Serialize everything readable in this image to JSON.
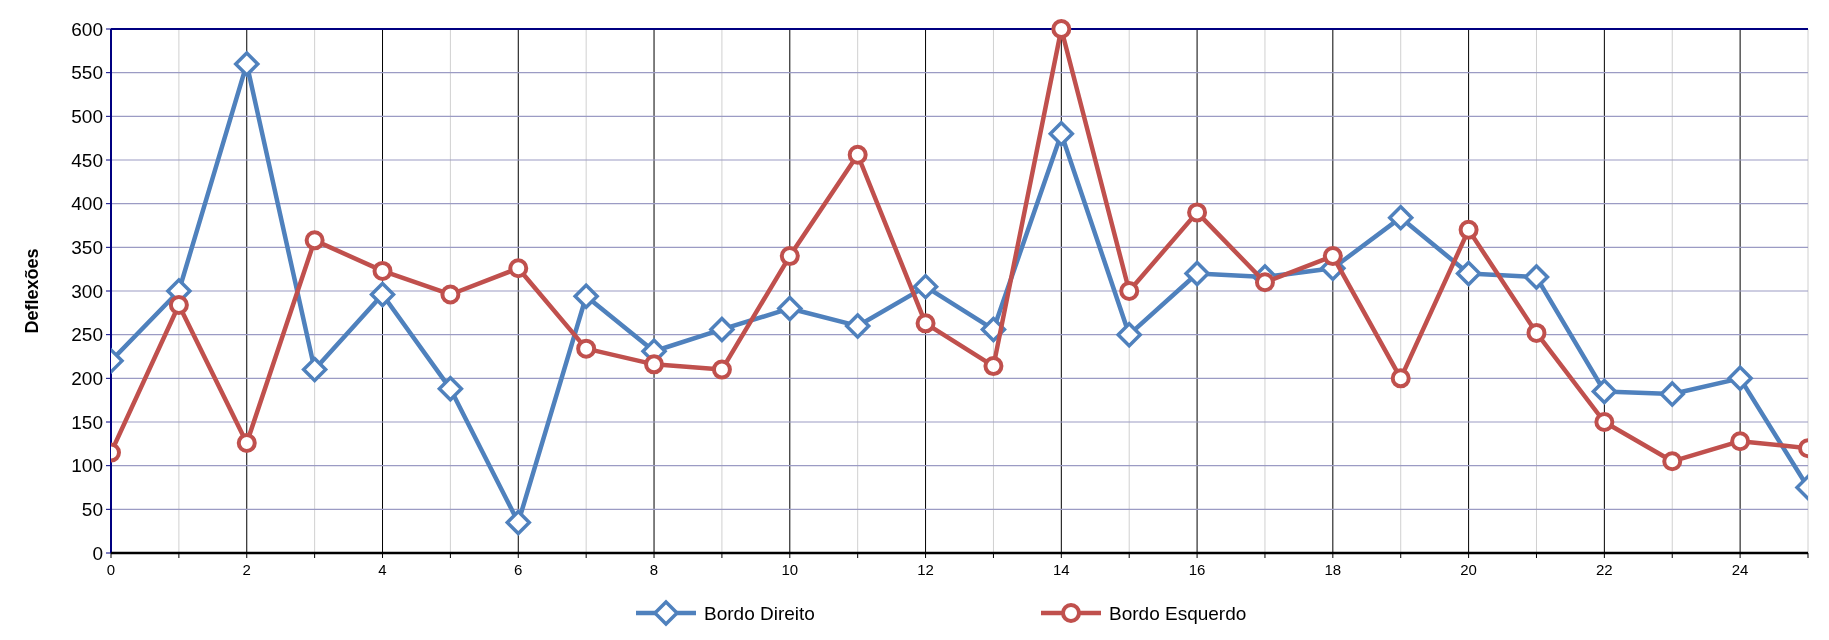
{
  "chart_data": {
    "type": "line",
    "ylabel": "Deflexões",
    "x": [
      0,
      1,
      2,
      3,
      4,
      5,
      6,
      7,
      8,
      9,
      10,
      11,
      12,
      13,
      14,
      15,
      16,
      17,
      18,
      19,
      20,
      21,
      22,
      23,
      24,
      25
    ],
    "series": [
      {
        "name": "Bordo Direito",
        "color": "#4f81bd",
        "marker": "diamond",
        "values": [
          220,
          300,
          560,
          210,
          296,
          188,
          35,
          294,
          231,
          256,
          280,
          260,
          305,
          256,
          480,
          250,
          320,
          316,
          326,
          384,
          320,
          316,
          185,
          182,
          200,
          75
        ]
      },
      {
        "name": "Bordo Esquerdo",
        "color": "#c0504d",
        "marker": "circle",
        "values": [
          115,
          284,
          126,
          358,
          323,
          296,
          326,
          234,
          216,
          210,
          340,
          456,
          263,
          214,
          600,
          300,
          390,
          310,
          340,
          200,
          370,
          252,
          150,
          105,
          128,
          120
        ]
      }
    ],
    "xlim": [
      0,
      25
    ],
    "ylim": [
      0,
      600
    ],
    "xticks": [
      0,
      {
        "value": 1,
        "label": null
      },
      2,
      {
        "value": 3,
        "label": null
      },
      4,
      {
        "value": 5,
        "label": null
      },
      6,
      {
        "value": 7,
        "label": null
      },
      8,
      {
        "value": 9,
        "label": null
      },
      10,
      {
        "value": 11,
        "label": null
      },
      12,
      {
        "value": 13,
        "label": null
      },
      14,
      {
        "value": 15,
        "label": null
      },
      16,
      {
        "value": 17,
        "label": null
      },
      18,
      {
        "value": 19,
        "label": null
      },
      20,
      {
        "value": 21,
        "label": null
      },
      22,
      {
        "value": 23,
        "label": null
      },
      24,
      {
        "value": 25,
        "label": null
      }
    ],
    "yticks": [
      0,
      50,
      100,
      150,
      200,
      250,
      300,
      350,
      400,
      450,
      500,
      550,
      600
    ],
    "grid": true,
    "legend": "bottom",
    "line_style": "solid"
  }
}
